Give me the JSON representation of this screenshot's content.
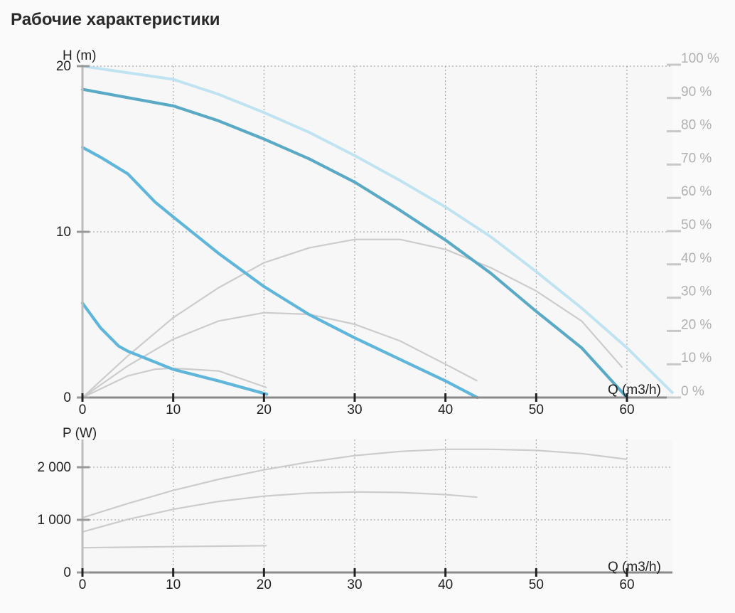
{
  "title": "Рабочие характеристики",
  "chart_data": [
    {
      "type": "line",
      "name": "head",
      "ylabel": "H (m)",
      "xlabel": "Q (m3/h)",
      "xlim": [
        0,
        65
      ],
      "ylim": [
        0,
        20
      ],
      "xticks": [
        0,
        10,
        20,
        30,
        40,
        50,
        60
      ],
      "yticks": [
        0,
        10,
        20
      ],
      "grid": true,
      "right_axis": {
        "ylim": [
          0,
          100
        ],
        "ticks": [
          0,
          10,
          20,
          30,
          40,
          50,
          60,
          70,
          80,
          90,
          100
        ],
        "tick_labels": [
          "0 %",
          "10 %",
          "20 %",
          "30 %",
          "40 %",
          "50 %",
          "60 %",
          "70 %",
          "80 %",
          "90 %",
          "100 %"
        ]
      },
      "head_curves": [
        {
          "style": "dashed-light",
          "color": "#bfe3f1",
          "x": [
            0,
            5,
            10,
            15,
            20,
            25,
            30,
            35,
            40,
            45,
            50,
            55,
            60,
            65
          ],
          "y": [
            20,
            19.6,
            19.2,
            18.3,
            17.2,
            16.0,
            14.6,
            13.1,
            11.5,
            9.7,
            7.6,
            5.4,
            3.0,
            0.3
          ]
        },
        {
          "style": "solid",
          "color": "#5aaac6",
          "x": [
            0,
            5,
            10,
            15,
            20,
            25,
            30,
            35,
            40,
            45,
            50,
            55,
            60
          ],
          "y": [
            18.6,
            18.1,
            17.6,
            16.7,
            15.6,
            14.4,
            13.0,
            11.3,
            9.5,
            7.5,
            5.2,
            3.0,
            0
          ]
        },
        {
          "style": "solid",
          "color": "#5fb6da",
          "x": [
            0,
            2,
            5,
            8,
            10,
            15,
            20,
            25,
            30,
            35,
            40,
            43.5
          ],
          "y": [
            15.1,
            14.5,
            13.5,
            11.8,
            10.9,
            8.7,
            6.7,
            5.0,
            3.6,
            2.3,
            1.0,
            0
          ]
        },
        {
          "style": "solid",
          "color": "#5fb6da",
          "x": [
            0,
            2,
            4,
            5,
            10,
            15,
            20.3
          ],
          "y": [
            5.7,
            4.2,
            3.1,
            2.8,
            1.7,
            1.0,
            0.2
          ]
        }
      ],
      "efficiency_curves": [
        {
          "x": [
            0,
            5,
            10,
            15,
            20,
            25,
            30,
            35,
            40,
            45,
            50,
            55,
            59.5
          ],
          "y": [
            0,
            12.5,
            24,
            33,
            40.5,
            45,
            47.5,
            47.5,
            44.5,
            39,
            32,
            23,
            9
          ]
        },
        {
          "x": [
            0,
            5,
            10,
            15,
            20,
            25,
            30,
            35,
            40,
            43.5
          ],
          "y": [
            0,
            9.5,
            17.5,
            23,
            25.5,
            25,
            22,
            17,
            10,
            5
          ]
        },
        {
          "x": [
            0,
            5,
            8,
            10,
            15,
            20.3
          ],
          "y": [
            0,
            6.5,
            8.5,
            8.8,
            8,
            3
          ]
        }
      ]
    },
    {
      "type": "line",
      "name": "power",
      "ylabel": "P (W)",
      "xlabel": "Q (m3/h)",
      "xlim": [
        0,
        65
      ],
      "ylim": [
        0,
        2500
      ],
      "xticks": [
        0,
        10,
        20,
        30,
        40,
        50,
        60
      ],
      "yticks": [
        0,
        1000,
        2000
      ],
      "ytick_labels": [
        "0",
        "1 000",
        "2 000"
      ],
      "grid": true,
      "power_curves": [
        {
          "x": [
            0,
            5,
            10,
            15,
            20,
            25,
            30,
            35,
            40,
            45,
            50,
            55,
            60
          ],
          "y": [
            1040,
            1310,
            1560,
            1770,
            1950,
            2100,
            2220,
            2300,
            2340,
            2340,
            2320,
            2260,
            2150
          ]
        },
        {
          "x": [
            0,
            5,
            10,
            15,
            20,
            25,
            30,
            35,
            40,
            43.5
          ],
          "y": [
            770,
            1010,
            1200,
            1350,
            1450,
            1510,
            1530,
            1520,
            1480,
            1430
          ]
        },
        {
          "x": [
            0,
            5,
            10,
            15,
            20.3
          ],
          "y": [
            470,
            480,
            490,
            500,
            510
          ]
        }
      ]
    }
  ]
}
